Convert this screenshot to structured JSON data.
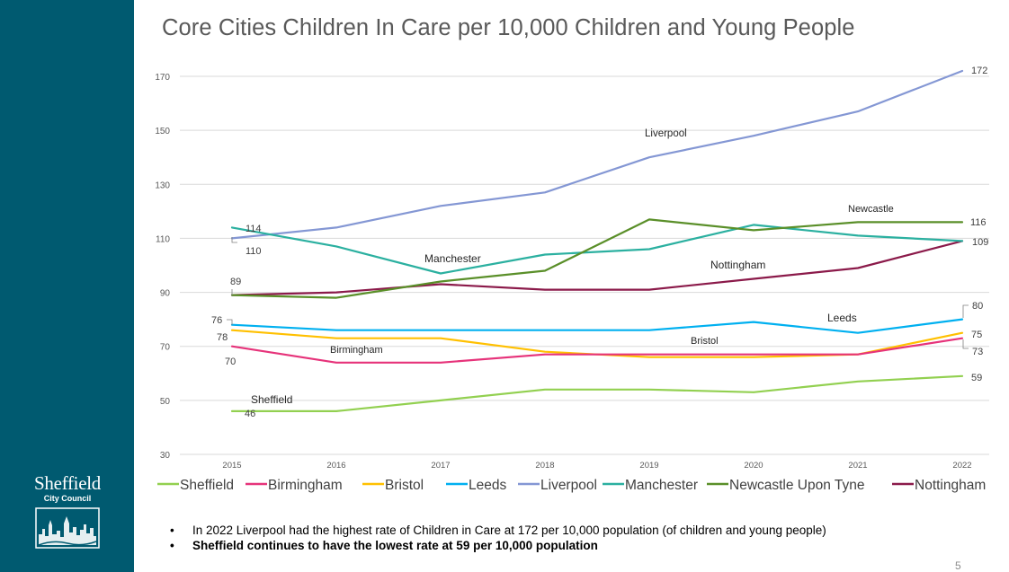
{
  "title": "Core Cities Children In Care per 10,000 Children and Young People",
  "logo": {
    "name": "Sheffield",
    "subtitle": "City Council"
  },
  "chart_data": {
    "type": "line",
    "title": "Core Cities Children In Care per 10,000 Children and Young People",
    "x": [
      "2015",
      "2016",
      "2017",
      "2018",
      "2019",
      "2020",
      "2021",
      "2022"
    ],
    "ylim": [
      30,
      170
    ],
    "yticks": [
      30,
      50,
      70,
      90,
      110,
      130,
      150,
      170
    ],
    "grid": true,
    "legend_position": "bottom",
    "series": [
      {
        "name": "Sheffield",
        "color": "#92d050",
        "values": [
          46,
          46,
          50,
          54,
          54,
          53,
          57,
          59
        ]
      },
      {
        "name": "Birmingham",
        "color": "#e6337a",
        "values": [
          70,
          64,
          64,
          67,
          67,
          67,
          67,
          73
        ]
      },
      {
        "name": "Bristol",
        "color": "#ffc000",
        "values": [
          76,
          73,
          73,
          68,
          66,
          66,
          67,
          75
        ]
      },
      {
        "name": "Leeds",
        "color": "#00b0f0",
        "values": [
          78,
          76,
          76,
          76,
          76,
          79,
          75,
          80
        ]
      },
      {
        "name": "Liverpool",
        "color": "#8497d4",
        "values": [
          110,
          114,
          122,
          127,
          140,
          148,
          157,
          172
        ]
      },
      {
        "name": "Manchester",
        "color": "#2bb0a0",
        "values": [
          114,
          107,
          97,
          104,
          106,
          115,
          111,
          109
        ]
      },
      {
        "name": "Newcastle Upon Tyne",
        "color": "#5a8f29",
        "values": [
          89,
          88,
          94,
          98,
          117,
          113,
          116,
          116
        ]
      },
      {
        "name": "Nottingham",
        "color": "#8b1a4a",
        "values": [
          89,
          90,
          93,
          91,
          91,
          95,
          99,
          109
        ]
      }
    ],
    "data_labels": [
      "114",
      "110",
      "89",
      "76",
      "78",
      "70",
      "46",
      "172",
      "116",
      "109",
      "80",
      "75",
      "73",
      "59"
    ],
    "annotations": [
      "Liverpool",
      "Newcastle",
      "Manchester",
      "Nottingham",
      "Leeds",
      "Bristol",
      "Birmingham",
      "Sheffield"
    ]
  },
  "bullets": [
    "In 2022 Liverpool had the highest rate of Children in Care at 172 per 10,000 population (of children and young people)",
    "Sheffield continues to have the lowest rate at 59 per 10,000 population"
  ],
  "page_number": "5"
}
